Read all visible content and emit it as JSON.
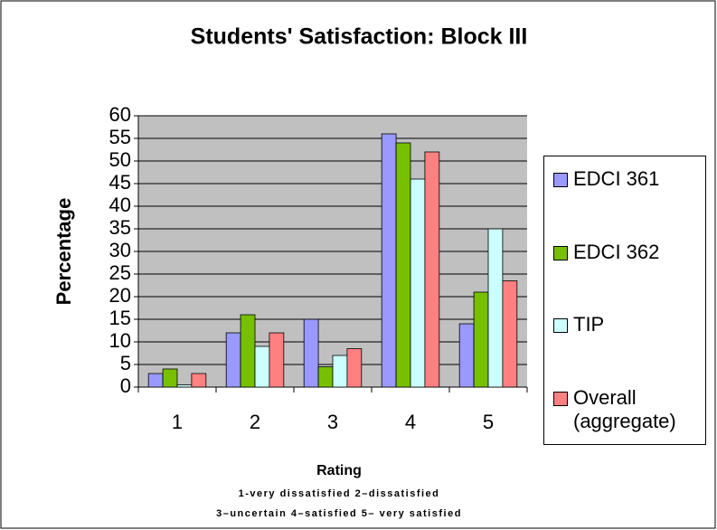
{
  "chart_data": {
    "type": "bar",
    "title": "Students' Satisfaction: Block III",
    "y_label": "Percentage",
    "x_label": "Rating",
    "notes": [
      "1-very dissatisfied 2–dissatisfied",
      "3–uncertain  4–satisfied 5– very satisfied"
    ],
    "categories": [
      "1",
      "2",
      "3",
      "4",
      "5"
    ],
    "series": [
      {
        "name": "EDCI 361",
        "color": "#9999ff",
        "values": [
          3,
          12,
          15,
          56,
          14
        ]
      },
      {
        "name": "EDCI 362",
        "color": "#77c000",
        "values": [
          4,
          16,
          4.5,
          54,
          21
        ]
      },
      {
        "name": "TIP",
        "color": "#ccffff",
        "values": [
          0.5,
          9,
          7,
          46,
          35
        ]
      },
      {
        "name": "Overall (aggregate)",
        "color": "#ff8080",
        "values": [
          3,
          12,
          8.5,
          52,
          23.5
        ]
      }
    ],
    "ylim": [
      0,
      60
    ],
    "yticks": [
      0,
      5,
      10,
      15,
      20,
      25,
      30,
      35,
      40,
      45,
      50,
      55,
      60
    ],
    "grid": true,
    "legend": "right"
  }
}
